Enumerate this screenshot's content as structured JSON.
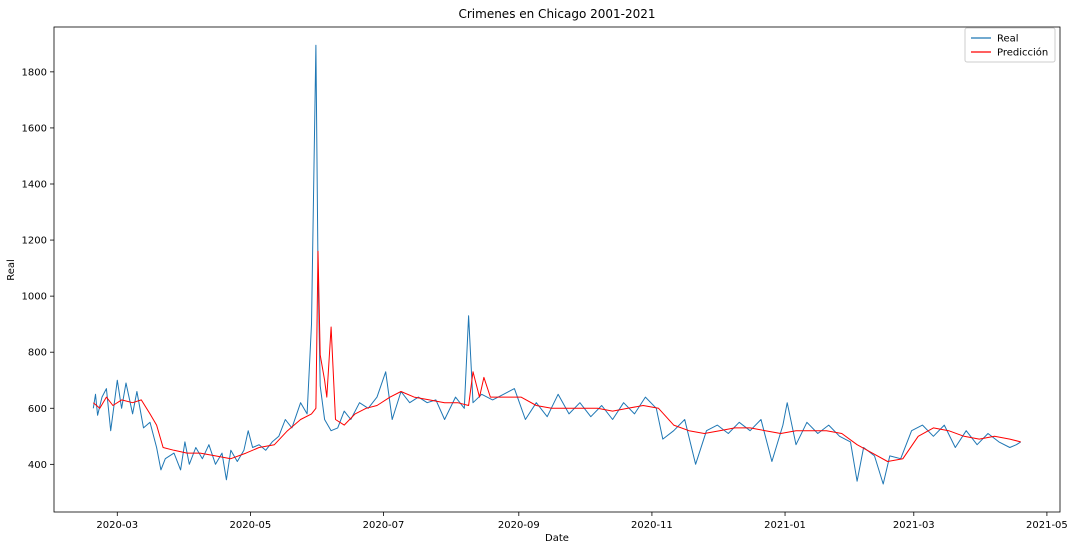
{
  "chart_data": {
    "type": "line",
    "title": "Crimenes en Chicago 2001-2021",
    "xlabel": "Date",
    "ylabel": "Real",
    "x_range": [
      "2020-02-01",
      "2021-05-07"
    ],
    "ylim": [
      230,
      1960
    ],
    "x_ticks": [
      "2020-03",
      "2020-05",
      "2020-07",
      "2020-09",
      "2020-11",
      "2021-01",
      "2021-03",
      "2021-05"
    ],
    "y_ticks": [
      400,
      600,
      800,
      1000,
      1200,
      1400,
      1600,
      1800
    ],
    "legend_position": "top-right",
    "grid": false,
    "series": [
      {
        "name": "Real",
        "color": "#1f77b4",
        "points": [
          [
            "2020-02-19",
            600
          ],
          [
            "2020-02-20",
            650
          ],
          [
            "2020-02-21",
            575
          ],
          [
            "2020-02-23",
            640
          ],
          [
            "2020-02-25",
            670
          ],
          [
            "2020-02-27",
            520
          ],
          [
            "2020-02-29",
            640
          ],
          [
            "2020-03-01",
            700
          ],
          [
            "2020-03-03",
            600
          ],
          [
            "2020-03-05",
            690
          ],
          [
            "2020-03-08",
            580
          ],
          [
            "2020-03-10",
            660
          ],
          [
            "2020-03-13",
            530
          ],
          [
            "2020-03-16",
            550
          ],
          [
            "2020-03-19",
            460
          ],
          [
            "2020-03-21",
            380
          ],
          [
            "2020-03-23",
            420
          ],
          [
            "2020-03-27",
            440
          ],
          [
            "2020-03-30",
            380
          ],
          [
            "2020-04-01",
            480
          ],
          [
            "2020-04-03",
            400
          ],
          [
            "2020-04-06",
            460
          ],
          [
            "2020-04-09",
            420
          ],
          [
            "2020-04-12",
            470
          ],
          [
            "2020-04-15",
            400
          ],
          [
            "2020-04-18",
            440
          ],
          [
            "2020-04-20",
            345
          ],
          [
            "2020-04-22",
            450
          ],
          [
            "2020-04-25",
            410
          ],
          [
            "2020-04-28",
            450
          ],
          [
            "2020-04-30",
            520
          ],
          [
            "2020-05-02",
            460
          ],
          [
            "2020-05-05",
            470
          ],
          [
            "2020-05-08",
            450
          ],
          [
            "2020-05-11",
            480
          ],
          [
            "2020-05-14",
            500
          ],
          [
            "2020-05-17",
            560
          ],
          [
            "2020-05-20",
            530
          ],
          [
            "2020-05-24",
            620
          ],
          [
            "2020-05-27",
            580
          ],
          [
            "2020-05-29",
            900
          ],
          [
            "2020-05-31",
            1895
          ],
          [
            "2020-06-01",
            1100
          ],
          [
            "2020-06-02",
            680
          ],
          [
            "2020-06-04",
            560
          ],
          [
            "2020-06-07",
            520
          ],
          [
            "2020-06-10",
            530
          ],
          [
            "2020-06-13",
            590
          ],
          [
            "2020-06-16",
            560
          ],
          [
            "2020-06-20",
            620
          ],
          [
            "2020-06-24",
            600
          ],
          [
            "2020-06-28",
            640
          ],
          [
            "2020-07-02",
            730
          ],
          [
            "2020-07-05",
            560
          ],
          [
            "2020-07-09",
            660
          ],
          [
            "2020-07-13",
            620
          ],
          [
            "2020-07-17",
            640
          ],
          [
            "2020-07-21",
            620
          ],
          [
            "2020-07-25",
            630
          ],
          [
            "2020-07-29",
            560
          ],
          [
            "2020-08-03",
            640
          ],
          [
            "2020-08-07",
            600
          ],
          [
            "2020-08-09",
            930
          ],
          [
            "2020-08-11",
            620
          ],
          [
            "2020-08-15",
            650
          ],
          [
            "2020-08-20",
            630
          ],
          [
            "2020-08-25",
            650
          ],
          [
            "2020-08-30",
            670
          ],
          [
            "2020-09-04",
            560
          ],
          [
            "2020-09-09",
            620
          ],
          [
            "2020-09-14",
            570
          ],
          [
            "2020-09-19",
            650
          ],
          [
            "2020-09-24",
            580
          ],
          [
            "2020-09-29",
            620
          ],
          [
            "2020-10-04",
            570
          ],
          [
            "2020-10-09",
            610
          ],
          [
            "2020-10-14",
            560
          ],
          [
            "2020-10-19",
            620
          ],
          [
            "2020-10-24",
            580
          ],
          [
            "2020-10-29",
            640
          ],
          [
            "2020-11-03",
            600
          ],
          [
            "2020-11-06",
            490
          ],
          [
            "2020-11-11",
            520
          ],
          [
            "2020-11-16",
            560
          ],
          [
            "2020-11-21",
            400
          ],
          [
            "2020-11-26",
            520
          ],
          [
            "2020-12-01",
            540
          ],
          [
            "2020-12-06",
            510
          ],
          [
            "2020-12-11",
            550
          ],
          [
            "2020-12-16",
            520
          ],
          [
            "2020-12-21",
            560
          ],
          [
            "2020-12-26",
            410
          ],
          [
            "2020-12-31",
            540
          ],
          [
            "2021-01-02",
            620
          ],
          [
            "2021-01-06",
            470
          ],
          [
            "2021-01-11",
            550
          ],
          [
            "2021-01-16",
            510
          ],
          [
            "2021-01-21",
            540
          ],
          [
            "2021-01-26",
            500
          ],
          [
            "2021-01-31",
            480
          ],
          [
            "2021-02-03",
            340
          ],
          [
            "2021-02-06",
            460
          ],
          [
            "2021-02-11",
            430
          ],
          [
            "2021-02-15",
            330
          ],
          [
            "2021-02-18",
            430
          ],
          [
            "2021-02-23",
            420
          ],
          [
            "2021-02-28",
            520
          ],
          [
            "2021-03-05",
            540
          ],
          [
            "2021-03-10",
            500
          ],
          [
            "2021-03-15",
            540
          ],
          [
            "2021-03-20",
            460
          ],
          [
            "2021-03-25",
            520
          ],
          [
            "2021-03-30",
            470
          ],
          [
            "2021-04-04",
            510
          ],
          [
            "2021-04-09",
            480
          ],
          [
            "2021-04-14",
            460
          ],
          [
            "2021-04-17",
            470
          ],
          [
            "2021-04-19",
            480
          ]
        ]
      },
      {
        "name": "Predicción",
        "color": "#ff0000",
        "points": [
          [
            "2020-02-19",
            620
          ],
          [
            "2020-02-22",
            600
          ],
          [
            "2020-02-25",
            640
          ],
          [
            "2020-02-28",
            610
          ],
          [
            "2020-03-03",
            630
          ],
          [
            "2020-03-08",
            620
          ],
          [
            "2020-03-12",
            630
          ],
          [
            "2020-03-16",
            580
          ],
          [
            "2020-03-19",
            540
          ],
          [
            "2020-03-22",
            460
          ],
          [
            "2020-03-27",
            450
          ],
          [
            "2020-04-02",
            440
          ],
          [
            "2020-04-08",
            440
          ],
          [
            "2020-04-15",
            430
          ],
          [
            "2020-04-22",
            420
          ],
          [
            "2020-04-29",
            440
          ],
          [
            "2020-05-05",
            460
          ],
          [
            "2020-05-12",
            470
          ],
          [
            "2020-05-18",
            520
          ],
          [
            "2020-05-24",
            560
          ],
          [
            "2020-05-29",
            580
          ],
          [
            "2020-05-31",
            600
          ],
          [
            "2020-06-01",
            1160
          ],
          [
            "2020-06-02",
            790
          ],
          [
            "2020-06-04",
            700
          ],
          [
            "2020-06-05",
            640
          ],
          [
            "2020-06-07",
            890
          ],
          [
            "2020-06-09",
            560
          ],
          [
            "2020-06-13",
            540
          ],
          [
            "2020-06-18",
            580
          ],
          [
            "2020-06-23",
            600
          ],
          [
            "2020-06-28",
            610
          ],
          [
            "2020-07-04",
            640
          ],
          [
            "2020-07-09",
            660
          ],
          [
            "2020-07-15",
            640
          ],
          [
            "2020-07-22",
            630
          ],
          [
            "2020-07-29",
            620
          ],
          [
            "2020-08-04",
            620
          ],
          [
            "2020-08-09",
            610
          ],
          [
            "2020-08-11",
            730
          ],
          [
            "2020-08-14",
            640
          ],
          [
            "2020-08-16",
            710
          ],
          [
            "2020-08-19",
            640
          ],
          [
            "2020-08-26",
            640
          ],
          [
            "2020-09-02",
            640
          ],
          [
            "2020-09-09",
            610
          ],
          [
            "2020-09-16",
            600
          ],
          [
            "2020-09-23",
            600
          ],
          [
            "2020-09-30",
            600
          ],
          [
            "2020-10-07",
            600
          ],
          [
            "2020-10-14",
            590
          ],
          [
            "2020-10-21",
            600
          ],
          [
            "2020-10-28",
            610
          ],
          [
            "2020-11-04",
            600
          ],
          [
            "2020-11-11",
            540
          ],
          [
            "2020-11-18",
            520
          ],
          [
            "2020-11-25",
            510
          ],
          [
            "2020-12-02",
            520
          ],
          [
            "2020-12-09",
            530
          ],
          [
            "2020-12-16",
            530
          ],
          [
            "2020-12-23",
            520
          ],
          [
            "2020-12-30",
            510
          ],
          [
            "2021-01-06",
            520
          ],
          [
            "2021-01-13",
            520
          ],
          [
            "2021-01-20",
            520
          ],
          [
            "2021-01-27",
            510
          ],
          [
            "2021-02-03",
            470
          ],
          [
            "2021-02-10",
            440
          ],
          [
            "2021-02-17",
            410
          ],
          [
            "2021-02-24",
            420
          ],
          [
            "2021-03-03",
            500
          ],
          [
            "2021-03-10",
            530
          ],
          [
            "2021-03-17",
            520
          ],
          [
            "2021-03-24",
            500
          ],
          [
            "2021-03-31",
            490
          ],
          [
            "2021-04-07",
            500
          ],
          [
            "2021-04-14",
            490
          ],
          [
            "2021-04-19",
            480
          ]
        ]
      }
    ]
  }
}
